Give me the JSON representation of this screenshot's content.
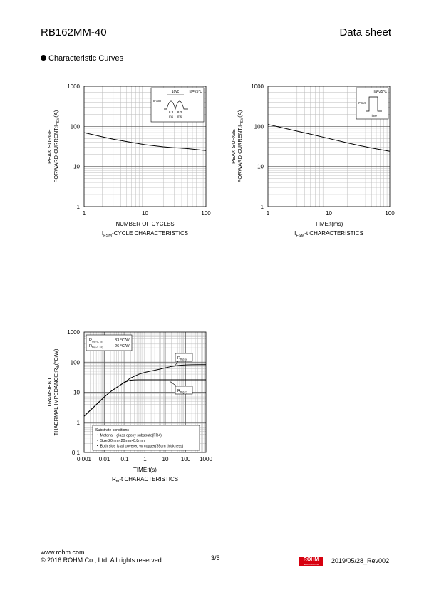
{
  "header": {
    "part_number": "RB162MM-40",
    "doc_type": "Data sheet"
  },
  "section_title": "Characteristic Curves",
  "footer": {
    "url": "www.rohm.com",
    "copyright": "© 2016 ROHM Co., Ltd. All rights reserved.",
    "page": "3/5",
    "logo_text": "ROHM",
    "logo_subtext": "SEMICONDUCTOR",
    "date_rev": "2019/05/28_Rev002"
  },
  "chart_data": [
    {
      "type": "line",
      "title_main": "I",
      "title_sub": "FSM",
      "title_rest": "-CYCLE CHARACTERISTICS",
      "xlabel": "NUMBER OF CYCLES",
      "ylabel_line1": "PEAK SURGE",
      "ylabel_line2_main": "FORWARD CURRENT:I",
      "ylabel_line2_sub": "FSM",
      "ylabel_line2_unit": "(A)",
      "x_scale": "log",
      "y_scale": "log",
      "xlim": [
        1,
        100
      ],
      "ylim": [
        1,
        1000
      ],
      "x_ticks": [
        "1",
        "10",
        "100"
      ],
      "y_ticks": [
        "1",
        "10",
        "100",
        "1000"
      ],
      "grid": true,
      "inset": {
        "label_cycle": "1cyc",
        "label_temp": "Ta=25°C",
        "label_ifsm": "IFSM",
        "label_t1": "8.3",
        "label_t1u": "ms",
        "label_t2": "8.3",
        "label_t2u": "ms"
      },
      "series": [
        {
          "x": [
            1,
            2,
            3,
            5,
            10,
            20,
            30,
            50,
            100
          ],
          "y": [
            70,
            55,
            48,
            42,
            35,
            31,
            29.5,
            28,
            25
          ]
        }
      ]
    },
    {
      "type": "line",
      "title_main": "I",
      "title_sub": "FSM",
      "title_rest": "-t CHARACTERISTICS",
      "xlabel": "TIME:t(ms)",
      "ylabel_line1": "PEAK SURGE",
      "ylabel_line2_main": "FORWARD CURRENT:I",
      "ylabel_line2_sub": "FSM",
      "ylabel_line2_unit": "(A)",
      "x_scale": "log",
      "y_scale": "log",
      "xlim": [
        1,
        100
      ],
      "ylim": [
        1,
        1000
      ],
      "x_ticks": [
        "1",
        "10",
        "100"
      ],
      "y_ticks": [
        "1",
        "10",
        "100",
        "1000"
      ],
      "grid": true,
      "inset": {
        "label_temp": "Ta=25°C",
        "label_ifsm": "IFSM",
        "label_time": "Time"
      },
      "series": [
        {
          "x": [
            1,
            2,
            3,
            5,
            10,
            20,
            30,
            50,
            100
          ],
          "y": [
            112,
            88,
            76,
            64,
            50,
            39,
            34,
            29,
            24
          ]
        }
      ]
    },
    {
      "type": "line",
      "title_main": "R",
      "title_sub": "th",
      "title_rest": "-t CHARACTERISTICS",
      "xlabel": "TIME:t(s)",
      "ylabel_line1": "TRANSIENT",
      "ylabel_line2_main": "THAERMAL IMPEDANCE:R",
      "ylabel_line2_sub": "th",
      "ylabel_line2_unit": "(°C/W)",
      "x_scale": "log",
      "y_scale": "log",
      "xlim": [
        0.001,
        1000
      ],
      "ylim": [
        0.1,
        1000
      ],
      "x_ticks": [
        "0.001",
        "0.01",
        "0.1",
        "1",
        "10",
        "100",
        "1000"
      ],
      "y_ticks": [
        "0.1",
        "1",
        "10",
        "100",
        "1000"
      ],
      "grid": true,
      "legend": {
        "ja_main": "R",
        "ja_sub": "th(j-a, ss)",
        "ja_value": ":   83 °C/W",
        "jc_main": "R",
        "jc_sub": "th(j-c, ss)",
        "jc_value": ":   26 °C/W"
      },
      "annotations": {
        "ja_main": "R",
        "ja_sub": "th(j-a)",
        "jc_main": "R",
        "jc_sub": "th(j-c)"
      },
      "notes": [
        "Substrate conditions",
        "・ Material : glass epoxy substrate(FR4)",
        "・ Size:20mm×20mm×0.8mm",
        "・ Both side is all covered w/ copper(35um thickness)"
      ],
      "series": [
        {
          "name_ref": "Rth(j-a)",
          "x": [
            0.001,
            0.002,
            0.005,
            0.01,
            0.02,
            0.05,
            0.1,
            0.2,
            0.5,
            1,
            2,
            5,
            10,
            20,
            50,
            100,
            200,
            500,
            1000
          ],
          "y": [
            1.6,
            2.5,
            4.5,
            7,
            10.5,
            16,
            22,
            30,
            40,
            46,
            51,
            58,
            65,
            72,
            78,
            81,
            82,
            82.5,
            83
          ]
        },
        {
          "name_ref": "Rth(j-c)",
          "x": [
            0.001,
            0.002,
            0.005,
            0.01,
            0.02,
            0.05,
            0.1,
            0.15,
            0.2,
            0.3,
            0.5,
            1,
            10,
            100,
            1000
          ],
          "y": [
            1.6,
            2.5,
            4.5,
            7,
            10.5,
            16,
            21.5,
            24,
            25.2,
            25.8,
            26,
            26,
            26,
            26,
            26
          ]
        }
      ]
    }
  ]
}
